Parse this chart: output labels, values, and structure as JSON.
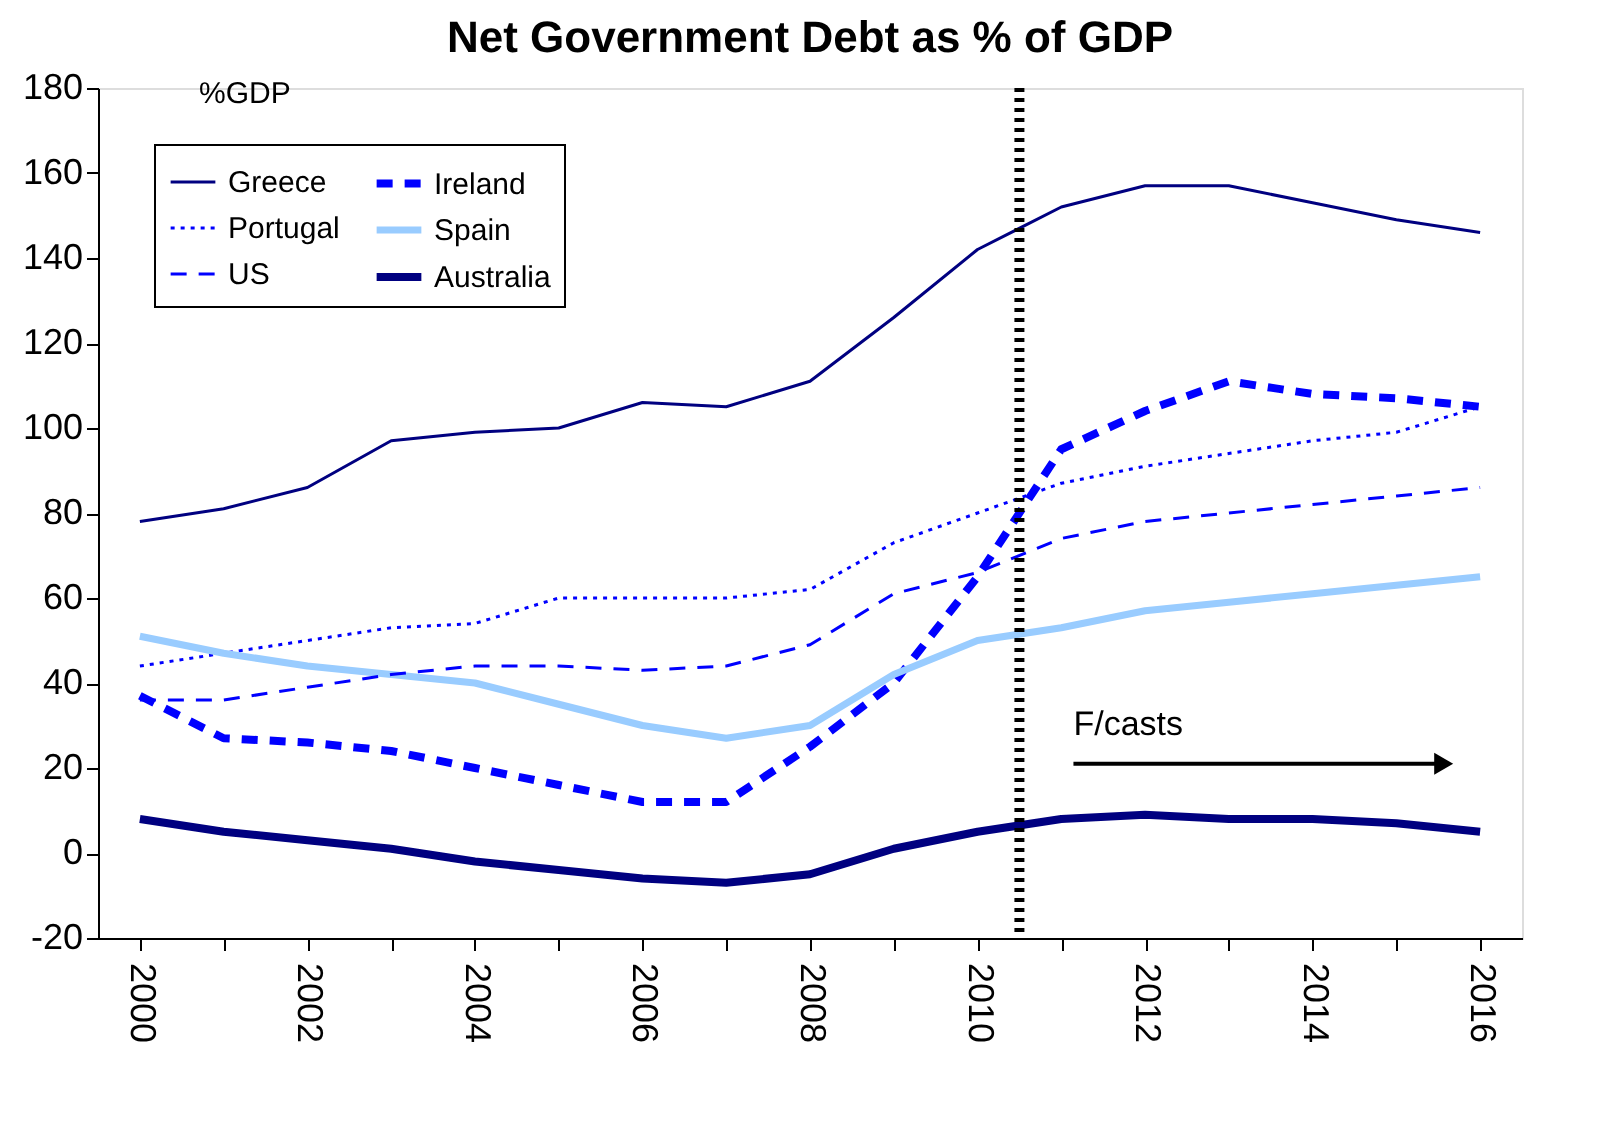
{
  "chart_data": {
    "type": "line",
    "title": "Net Government Debt as % of GDP",
    "ylabel": "%GDP",
    "x": [
      2000,
      2001,
      2002,
      2003,
      2004,
      2005,
      2006,
      2007,
      2008,
      2009,
      2010,
      2011,
      2012,
      2013,
      2014,
      2015,
      2016
    ],
    "series": [
      {
        "name": "Greece",
        "color": "#000080",
        "line_style": "solid",
        "values": [
          78,
          81,
          86,
          97,
          99,
          100,
          106,
          105,
          111,
          126,
          142,
          152,
          157,
          157,
          153,
          149,
          146
        ]
      },
      {
        "name": "Ireland",
        "color": "#0000ff",
        "line_style": "dashed",
        "values": [
          37,
          27,
          26,
          24,
          20,
          16,
          12,
          12,
          25,
          40,
          65,
          95,
          104,
          111,
          108,
          107,
          105
        ]
      },
      {
        "name": "Portugal",
        "color": "#0000ff",
        "line_style": "dotted",
        "values": [
          44,
          47,
          50,
          53,
          54,
          60,
          60,
          60,
          62,
          73,
          80,
          87,
          91,
          94,
          97,
          99,
          105
        ]
      },
      {
        "name": "Spain",
        "color": "#99ccff",
        "line_style": "solid",
        "values": [
          51,
          47,
          44,
          42,
          40,
          35,
          30,
          27,
          30,
          42,
          50,
          53,
          57,
          59,
          61,
          63,
          65
        ]
      },
      {
        "name": "US",
        "color": "#0000ff",
        "line_style": "dashed",
        "values": [
          36,
          36,
          39,
          42,
          44,
          44,
          43,
          44,
          49,
          61,
          66,
          74,
          78,
          80,
          82,
          84,
          86
        ]
      },
      {
        "name": "Australia",
        "color": "#000080",
        "line_style": "solid",
        "values": [
          8,
          5,
          3,
          1,
          -2,
          -4,
          -6,
          -7,
          -5,
          1,
          5,
          8,
          9,
          8,
          8,
          7,
          5
        ]
      }
    ],
    "xlim": [
      1999.5,
      2016.5
    ],
    "xticks": [
      2000,
      {
        "value": 2001,
        "label": null
      },
      2002,
      {
        "value": 2003,
        "label": null
      },
      2004,
      {
        "value": 2005,
        "label": null
      },
      2006,
      {
        "value": 2007,
        "label": null
      },
      2008,
      {
        "value": 2009,
        "label": null
      },
      2010,
      {
        "value": 2011,
        "label": null
      },
      2012,
      {
        "value": 2013,
        "label": null
      },
      2014,
      {
        "value": 2015,
        "label": null
      },
      2016
    ],
    "ylim": [
      -20,
      180
    ],
    "yticks": [
      -20,
      0,
      20,
      40,
      60,
      80,
      100,
      120,
      140,
      160,
      180
    ],
    "ref_lines": [
      {
        "axis": "x",
        "value": 2010.5,
        "label": null,
        "color": "#000000",
        "line_style": "dotted"
      }
    ],
    "annotations": [
      "F/casts"
    ],
    "grid": false,
    "legend": "top left",
    "marker": "none"
  }
}
